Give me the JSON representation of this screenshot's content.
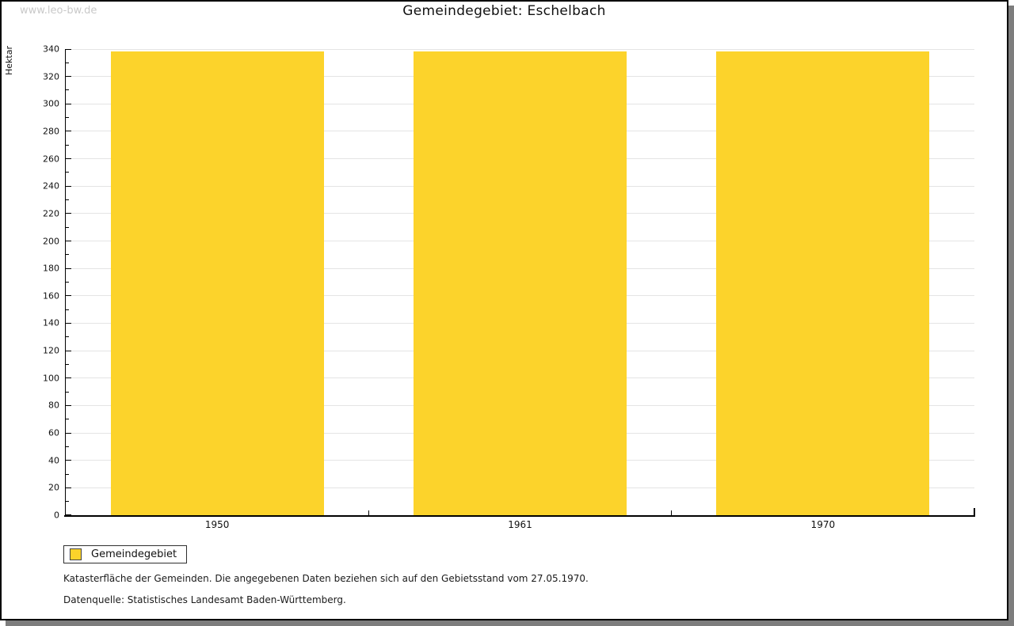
{
  "watermark": "www.leo-bw.de",
  "title": "Gemeindegebiet: Eschelbach",
  "chart_data": {
    "type": "bar",
    "title": "Gemeindegebiet: Eschelbach",
    "categories": [
      "1950",
      "1961",
      "1970"
    ],
    "series": [
      {
        "name": "Gemeindegebiet",
        "values": [
          338,
          338,
          338
        ]
      }
    ],
    "xlabel": "",
    "ylabel": "Hektar",
    "ylim": [
      0,
      340
    ],
    "ytick_step": 20,
    "yminor_step": 10,
    "grid": true,
    "legend_position": "bottom-left",
    "bar_color": "#fcd32b"
  },
  "legend": {
    "items": [
      {
        "label": "Gemeindegebiet",
        "color": "#fcd32b"
      }
    ]
  },
  "footnotes": {
    "line1": "Katasterfläche der Gemeinden. Die angegebenen Daten beziehen sich auf den Gebietsstand vom 27.05.1970.",
    "line2": "Datenquelle: Statistisches Landesamt Baden-Württemberg."
  },
  "colors": {
    "bar": "#fcd32b",
    "gridline": "#e4e4e4",
    "axis": "#000000",
    "watermark": "#c9c9c9",
    "shadow": "#7d7d7d",
    "background": "#ffffff"
  }
}
